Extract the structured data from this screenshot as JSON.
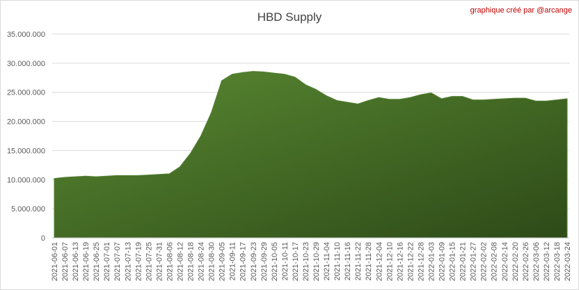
{
  "chart_data": {
    "type": "area",
    "title": "HBD Supply",
    "annotation": "graphique créé par @arcange",
    "categories": [
      "2021-06-01",
      "2021-06-07",
      "2021-06-13",
      "2021-06-19",
      "2021-06-25",
      "2021-07-01",
      "2021-07-07",
      "2021-07-13",
      "2021-07-19",
      "2021-07-25",
      "2021-07-31",
      "2021-08-06",
      "2021-08-12",
      "2021-08-18",
      "2021-08-24",
      "2021-08-30",
      "2021-09-05",
      "2021-09-11",
      "2021-09-17",
      "2021-09-23",
      "2021-09-29",
      "2021-10-05",
      "2021-10-11",
      "2021-10-17",
      "2021-10-23",
      "2021-10-29",
      "2021-11-04",
      "2021-11-10",
      "2021-11-16",
      "2021-11-22",
      "2021-11-28",
      "2021-12-04",
      "2021-12-10",
      "2021-12-16",
      "2021-12-22",
      "2021-12-28",
      "2022-01-03",
      "2022-01-09",
      "2022-01-15",
      "2022-01-21",
      "2022-01-27",
      "2022-02-02",
      "2022-02-08",
      "2022-02-14",
      "2022-02-20",
      "2022-02-26",
      "2022-03-06",
      "2022-03-12",
      "2022-03-18",
      "2022-03-24"
    ],
    "values": [
      10200000,
      10400000,
      10500000,
      10600000,
      10500000,
      10600000,
      10700000,
      10700000,
      10700000,
      10800000,
      10900000,
      11000000,
      12200000,
      14500000,
      17500000,
      21500000,
      27000000,
      28100000,
      28400000,
      28600000,
      28500000,
      28300000,
      28100000,
      27600000,
      26300000,
      25500000,
      24400000,
      23600000,
      23300000,
      23000000,
      23600000,
      24100000,
      23800000,
      23800000,
      24100000,
      24600000,
      24900000,
      23900000,
      24300000,
      24300000,
      23700000,
      23700000,
      23800000,
      23900000,
      24000000,
      24000000,
      23500000,
      23500000,
      23700000,
      23900000
    ],
    "color": "#548235",
    "ylim": [
      0,
      35000000
    ],
    "yticks": [
      0,
      {
        "value": 5000000,
        "label": "5.000.000"
      },
      {
        "value": 10000000,
        "label": "10.000.000"
      },
      {
        "value": 15000000,
        "label": "15.000.000"
      },
      {
        "value": 20000000,
        "label": "20.000.000"
      },
      {
        "value": 25000000,
        "label": "25.000.000"
      },
      {
        "value": 30000000,
        "label": "30.000.000"
      },
      {
        "value": 35000000,
        "label": "35.000.000"
      }
    ],
    "grid": true
  }
}
